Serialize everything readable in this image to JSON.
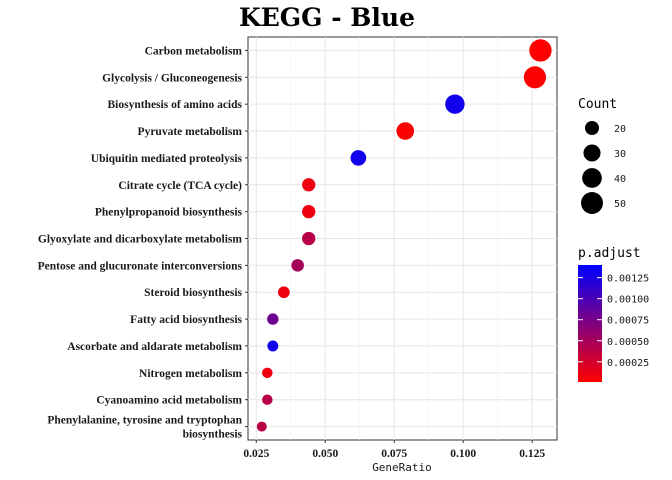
{
  "chart_data": {
    "type": "scatter",
    "title": "KEGG - Blue",
    "xlabel": "GeneRatio",
    "ylabel": "",
    "xlim": [
      0.022,
      0.134
    ],
    "xticks": [
      0.025,
      0.05,
      0.075,
      0.1,
      0.125
    ],
    "xtick_labels": [
      "0.025",
      "0.050",
      "0.075",
      "0.100",
      "0.125"
    ],
    "grid": true,
    "legend_position": "right",
    "categories": [
      "Carbon metabolism",
      "Glycolysis / Gluconeogenesis",
      "Biosynthesis of amino acids",
      "Pyruvate metabolism",
      "Ubiquitin mediated proteolysis",
      "Citrate cycle (TCA cycle)",
      "Phenylpropanoid biosynthesis",
      "Glyoxylate and dicarboxylate metabolism",
      "Pentose and glucuronate interconversions",
      "Steroid biosynthesis",
      "Fatty acid biosynthesis",
      "Ascorbate and aldarate metabolism",
      "Nitrogen metabolism",
      "Cyanoamino acid metabolism",
      "Phenylalanine, tyrosine and tryptophan biosynthesis"
    ],
    "category_lines": [
      [
        "Carbon metabolism"
      ],
      [
        "Glycolysis / Gluconeogenesis"
      ],
      [
        "Biosynthesis of amino acids"
      ],
      [
        "Pyruvate metabolism"
      ],
      [
        "Ubiquitin mediated proteolysis"
      ],
      [
        "Citrate cycle (TCA cycle)"
      ],
      [
        "Phenylpropanoid biosynthesis"
      ],
      [
        "Glyoxylate and dicarboxylate metabolism"
      ],
      [
        "Pentose and glucuronate interconversions"
      ],
      [
        "Steroid biosynthesis"
      ],
      [
        "Fatty acid biosynthesis"
      ],
      [
        "Ascorbate and aldarate metabolism"
      ],
      [
        "Nitrogen metabolism"
      ],
      [
        "Cyanoamino acid metabolism"
      ],
      [
        "Phenylalanine, tyrosine and tryptophan",
        "biosynthesis"
      ]
    ],
    "gene_ratio": [
      0.128,
      0.126,
      0.097,
      0.079,
      0.062,
      0.044,
      0.044,
      0.044,
      0.04,
      0.035,
      0.031,
      0.031,
      0.029,
      0.029,
      0.027
    ],
    "count": [
      52,
      51,
      39,
      32,
      25,
      18,
      18,
      18,
      16,
      14,
      13,
      12,
      11,
      11,
      10
    ],
    "p_adjust": [
      1e-05,
      2e-05,
      0.0013,
      2e-05,
      0.0013,
      0.0001,
      0.0001,
      0.0004,
      0.0005,
      0.0001,
      0.0008,
      0.0013,
      0.0001,
      0.0004,
      0.0004
    ],
    "size_legend": {
      "title": "Count",
      "values": [
        20,
        30,
        40,
        50
      ],
      "labels": [
        "20",
        "30",
        "40",
        "50"
      ]
    },
    "color_legend": {
      "title": "p.adjust",
      "low_color": "#ff0000",
      "high_color": "#0000ff",
      "range": [
        1e-05,
        0.0014
      ],
      "ticks": [
        0.00025,
        0.0005,
        0.00075,
        0.001,
        0.00125
      ],
      "tick_labels": [
        "0.00025",
        "0.00050",
        "0.00075",
        "0.00100",
        "0.00125"
      ]
    }
  }
}
